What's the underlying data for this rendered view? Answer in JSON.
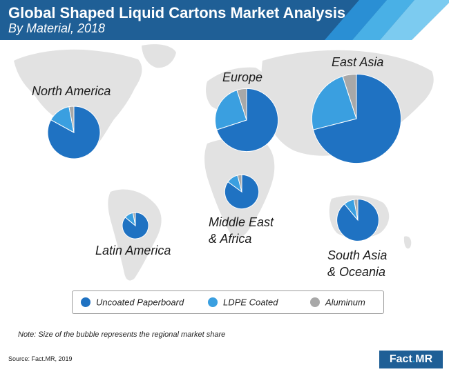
{
  "header": {
    "title": "Global Shaped Liquid Cartons Market Analysis",
    "subtitle": "By Material, 2018"
  },
  "chart_data": {
    "type": "pie",
    "title": "Global Shaped Liquid Cartons Market Analysis",
    "subtitle": "By Material, 2018",
    "series_names": [
      "Uncoated Paperboard",
      "LDPE Coated",
      "Aluminum"
    ],
    "colors": [
      "#1f72c2",
      "#3a9fe0",
      "#a8a8a8"
    ],
    "regions": [
      {
        "name": "North America",
        "relative_market_size": 1.0,
        "values": [
          0.83,
          0.14,
          0.03
        ]
      },
      {
        "name": "Europe",
        "relative_market_size": 1.2,
        "values": [
          0.7,
          0.25,
          0.05
        ]
      },
      {
        "name": "East Asia",
        "relative_market_size": 1.7,
        "values": [
          0.71,
          0.24,
          0.05
        ]
      },
      {
        "name": "Latin America",
        "relative_market_size": 0.5,
        "values": [
          0.86,
          0.11,
          0.03
        ]
      },
      {
        "name": "Middle East\n& Africa",
        "relative_market_size": 0.65,
        "values": [
          0.85,
          0.11,
          0.04
        ]
      },
      {
        "name": "South Asia\n& Oceania",
        "relative_market_size": 0.8,
        "values": [
          0.89,
          0.08,
          0.03
        ]
      }
    ]
  },
  "legend": {
    "items": [
      {
        "label": "Uncoated Paperboard",
        "color": "#1f72c2"
      },
      {
        "label": "LDPE Coated",
        "color": "#3a9fe0"
      },
      {
        "label": "Aluminum",
        "color": "#a8a8a8"
      }
    ]
  },
  "note": "Note: Size of the bubble represents the regional market share",
  "source": "Source: Fact.MR, 2019",
  "logo": {
    "part1": "Fact",
    "dot": ".",
    "part2": "MR"
  }
}
